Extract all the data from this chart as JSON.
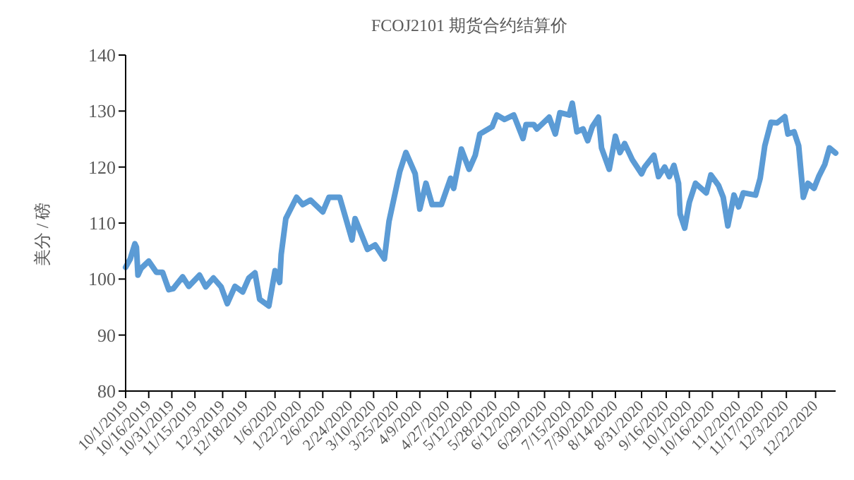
{
  "chart_data": {
    "type": "line",
    "title": "FCOJ2101 期货合约结算价",
    "ylabel": "美分 / 磅",
    "x": [
      "2019-10-01",
      "2019-10-04",
      "2019-10-07",
      "2019-10-08",
      "2019-10-09",
      "2019-10-11",
      "2019-10-16",
      "2019-10-21",
      "2019-10-25",
      "2019-10-29",
      "2019-11-01",
      "2019-11-07",
      "2019-11-11",
      "2019-11-18",
      "2019-11-22",
      "2019-11-27",
      "2019-12-02",
      "2019-12-06",
      "2019-12-11",
      "2019-12-16",
      "2019-12-20",
      "2019-12-24",
      "2019-12-27",
      "2020-01-02",
      "2020-01-06",
      "2020-01-09",
      "2020-01-10",
      "2020-01-13",
      "2020-01-15",
      "2020-01-20",
      "2020-01-24",
      "2020-01-29",
      "2020-02-06",
      "2020-02-10",
      "2020-02-17",
      "2020-02-21",
      "2020-02-25",
      "2020-02-27",
      "2020-03-06",
      "2020-03-11",
      "2020-03-17",
      "2020-03-20",
      "2020-03-27",
      "2020-03-31",
      "2020-04-06",
      "2020-04-09",
      "2020-04-13",
      "2020-04-17",
      "2020-04-23",
      "2020-04-29",
      "2020-05-01",
      "2020-05-06",
      "2020-05-11",
      "2020-05-15",
      "2020-05-18",
      "2020-05-26",
      "2020-05-29",
      "2020-06-03",
      "2020-06-09",
      "2020-06-15",
      "2020-06-17",
      "2020-06-22",
      "2020-06-24",
      "2020-07-02",
      "2020-07-06",
      "2020-07-09",
      "2020-07-15",
      "2020-07-17",
      "2020-07-20",
      "2020-07-24",
      "2020-07-27",
      "2020-07-30",
      "2020-08-03",
      "2020-08-05",
      "2020-08-10",
      "2020-08-14",
      "2020-08-17",
      "2020-08-20",
      "2020-08-25",
      "2020-08-31",
      "2020-09-02",
      "2020-09-08",
      "2020-09-11",
      "2020-09-15",
      "2020-09-18",
      "2020-09-21",
      "2020-09-24",
      "2020-09-25",
      "2020-09-28",
      "2020-10-01",
      "2020-10-05",
      "2020-10-12",
      "2020-10-15",
      "2020-10-20",
      "2020-10-23",
      "2020-10-26",
      "2020-10-30",
      "2020-11-02",
      "2020-11-05",
      "2020-11-13",
      "2020-11-16",
      "2020-11-19",
      "2020-11-23",
      "2020-11-27",
      "2020-12-02",
      "2020-12-04",
      "2020-12-08",
      "2020-12-11",
      "2020-12-14",
      "2020-12-17",
      "2020-12-21",
      "2020-12-24",
      "2020-12-28",
      "2020-12-31",
      "2021-01-04"
    ],
    "series": [
      {
        "color": "#5b9bd5",
        "values": [
          102.1,
          103.6,
          106.3,
          105.7,
          100.7,
          101.9,
          103.2,
          101.2,
          101.2,
          98.1,
          98.3,
          100.4,
          98.7,
          100.7,
          98.6,
          100.2,
          98.6,
          95.6,
          98.7,
          97.7,
          100.2,
          101.1,
          96.4,
          95.2,
          101.5,
          99.4,
          104.4,
          110.8,
          111.9,
          114.6,
          113.3,
          114.1,
          112.0,
          114.6,
          114.6,
          110.8,
          107.0,
          110.8,
          105.3,
          106.1,
          103.6,
          110.3,
          119.2,
          122.6,
          118.8,
          112.5,
          117.1,
          113.3,
          113.3,
          118.0,
          116.2,
          123.2,
          119.6,
          122.1,
          125.9,
          127.2,
          129.3,
          128.5,
          129.3,
          125.1,
          127.6,
          127.6,
          126.8,
          128.9,
          125.9,
          129.7,
          129.3,
          131.4,
          126.3,
          126.8,
          124.7,
          127.2,
          128.9,
          123.4,
          119.6,
          125.5,
          122.6,
          124.2,
          121.3,
          118.8,
          120.0,
          122.1,
          118.3,
          120.0,
          118.3,
          120.3,
          117.1,
          111.6,
          109.1,
          113.7,
          117.1,
          115.4,
          118.6,
          116.7,
          114.6,
          109.5,
          115.0,
          112.9,
          115.4,
          115.0,
          118.0,
          123.8,
          128.0,
          127.9,
          129.0,
          125.9,
          126.3,
          123.8,
          114.6,
          117.1,
          116.2,
          118.3,
          120.5,
          123.4,
          122.5
        ]
      }
    ],
    "ylim": [
      80,
      140
    ],
    "yticks": [
      80,
      90,
      100,
      110,
      120,
      130,
      140
    ],
    "xlim": [
      "2019-10-01",
      "2021-01-04"
    ],
    "xticks": [
      {
        "value": "2019-10-01",
        "label": "10/1/2019"
      },
      {
        "value": "2019-10-16",
        "label": "10/16/2019"
      },
      {
        "value": "2019-10-31",
        "label": "10/31/2019"
      },
      {
        "value": "2019-11-15",
        "label": "11/15/2019"
      },
      {
        "value": "2019-12-03",
        "label": "12/3/2019"
      },
      {
        "value": "2019-12-18",
        "label": "12/18/2019"
      },
      {
        "value": "2020-01-06",
        "label": "1/6/2020"
      },
      {
        "value": "2020-01-22",
        "label": "1/22/2020"
      },
      {
        "value": "2020-02-06",
        "label": "2/6/2020"
      },
      {
        "value": "2020-02-24",
        "label": "2/24/2020"
      },
      {
        "value": "2020-03-10",
        "label": "3/10/2020"
      },
      {
        "value": "2020-03-25",
        "label": "3/25/2020"
      },
      {
        "value": "2020-04-09",
        "label": "4/9/2020"
      },
      {
        "value": "2020-04-27",
        "label": "4/27/2020"
      },
      {
        "value": "2020-05-12",
        "label": "5/12/2020"
      },
      {
        "value": "2020-05-28",
        "label": "5/28/2020"
      },
      {
        "value": "2020-06-12",
        "label": "6/12/2020"
      },
      {
        "value": "2020-06-29",
        "label": "6/29/2020"
      },
      {
        "value": "2020-07-15",
        "label": "7/15/2020"
      },
      {
        "value": "2020-07-30",
        "label": "7/30/2020"
      },
      {
        "value": "2020-08-14",
        "label": "8/14/2020"
      },
      {
        "value": "2020-08-31",
        "label": "8/31/2020"
      },
      {
        "value": "2020-09-16",
        "label": "9/16/2020"
      },
      {
        "value": "2020-10-01",
        "label": "10/1/2020"
      },
      {
        "value": "2020-10-16",
        "label": "10/16/2020"
      },
      {
        "value": "2020-11-02",
        "label": "11/2/2020"
      },
      {
        "value": "2020-11-17",
        "label": "11/17/2020"
      },
      {
        "value": "2020-12-03",
        "label": "12/3/2020"
      },
      {
        "value": "2020-12-22",
        "label": "12/22/2020"
      }
    ],
    "grid": false,
    "marker": "none",
    "line_style": "solid"
  }
}
